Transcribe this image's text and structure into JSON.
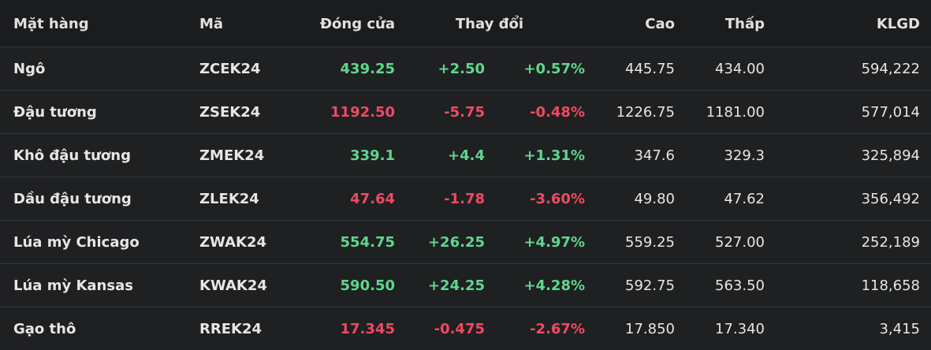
{
  "table": {
    "header": [
      "Mặt hàng",
      "Mã",
      "Đóng cửa",
      "Thay đổi",
      "Cao",
      "Thấp",
      "KLGD"
    ],
    "rows": [
      [
        "Ngô",
        "ZCEK24",
        "439.25",
        "+2.50",
        "+0.57%",
        "445.75",
        "434.00",
        "594,222"
      ],
      [
        "Đậu tương",
        "ZSEK24",
        "1192.50",
        "-5.75",
        "-0.48%",
        "1226.75",
        "1181.00",
        "577,014"
      ],
      [
        "Khô đậu tương",
        "ZMEK24",
        "339.1",
        "+4.4",
        "+1.31%",
        "347.6",
        "329.3",
        "325,894"
      ],
      [
        "Dầu đậu tương",
        "ZLEK24",
        "47.64",
        "-1.78",
        "-3.60%",
        "49.80",
        "47.62",
        "356,492"
      ],
      [
        "Lúa mỳ Chicago",
        "ZWAK24",
        "554.75",
        "+26.25",
        "+4.97%",
        "559.25",
        "527.00",
        "252,189"
      ],
      [
        "Lúa mỳ Kansas",
        "KWAK24",
        "590.50",
        "+24.25",
        "+4.28%",
        "592.75",
        "563.50",
        "118,658"
      ],
      [
        "Gạo thô",
        "RREK24",
        "17.345",
        "-0.475",
        "-2.67%",
        "17.850",
        "17.340",
        "3,415"
      ]
    ],
    "colors": {
      "up": "#5fd68d",
      "down": "#ec4b62"
    }
  }
}
